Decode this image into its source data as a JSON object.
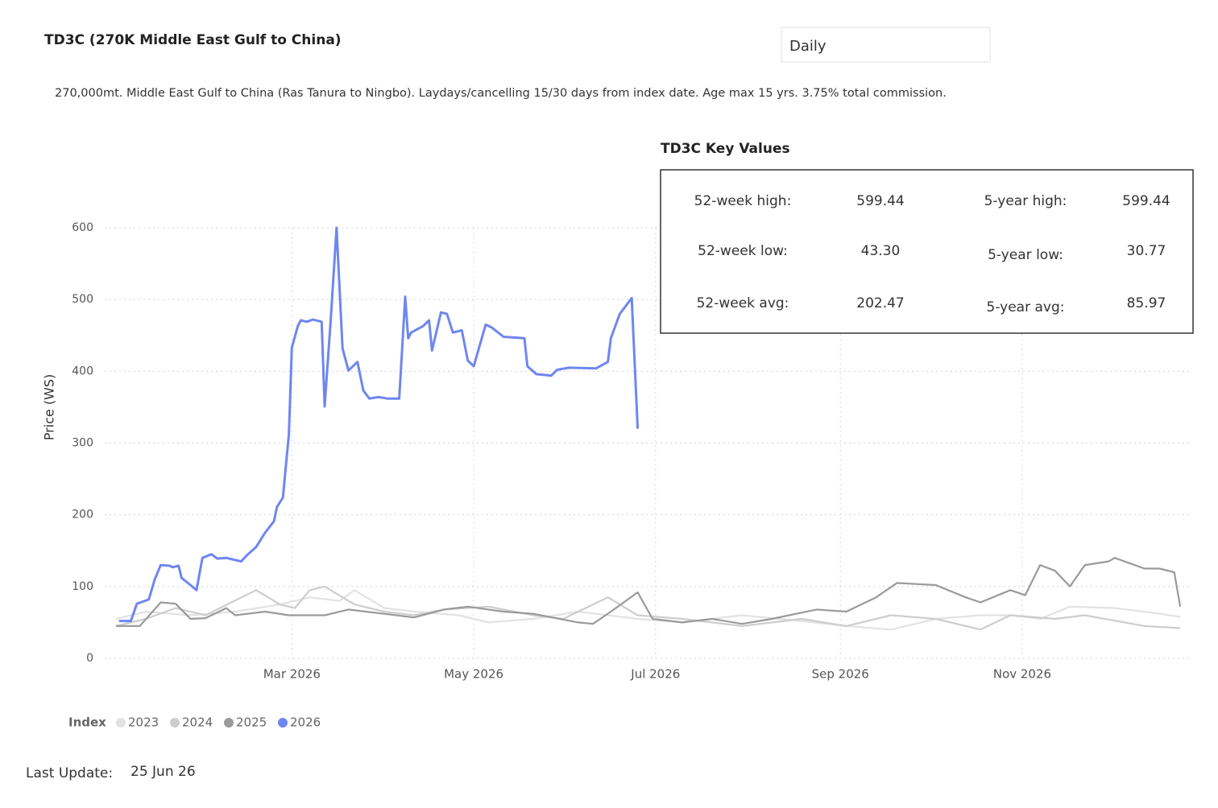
{
  "chart_data": {
    "type": "line",
    "title": "TD3C (270K Middle East Gulf to China)",
    "subtitle": "270,000mt. Middle East Gulf to China (Ras Tanura to Ningbo). Laydays/cancelling 15/30 days from index date. Age max 15 yrs. 3.75% total commission.",
    "ylabel": "Price (WS)",
    "legend_title": "Index",
    "xlim": [
      0,
      364
    ],
    "ylim": [
      0,
      600
    ],
    "xticks": [
      {
        "value": 59,
        "label": "Mar 2026"
      },
      {
        "value": 120,
        "label": "May 2026"
      },
      {
        "value": 181,
        "label": "Jul 2026"
      },
      {
        "value": 243,
        "label": "Sep 2026"
      },
      {
        "value": 304,
        "label": "Nov 2026"
      }
    ],
    "yticks": [
      0,
      100,
      200,
      300,
      400,
      500,
      600
    ],
    "grid": true,
    "series": [
      {
        "name": "2023",
        "color": "#e2e2e2",
        "x": [
          0,
          10,
          25,
          40,
          55,
          65,
          75,
          80,
          90,
          100,
          115,
          125,
          140,
          155,
          175,
          190,
          210,
          230,
          245,
          260,
          275,
          290,
          300,
          310,
          320,
          335,
          345,
          357
        ],
        "values": [
          55,
          65,
          60,
          65,
          75,
          85,
          80,
          95,
          70,
          65,
          60,
          50,
          55,
          65,
          55,
          50,
          60,
          52,
          45,
          40,
          55,
          60,
          60,
          55,
          72,
          70,
          65,
          58
        ]
      },
      {
        "name": "2024",
        "color": "#cdcdcd",
        "x": [
          0,
          10,
          20,
          30,
          47,
          55,
          60,
          65,
          70,
          80,
          90,
          100,
          110,
          125,
          140,
          150,
          165,
          175,
          190,
          210,
          230,
          245,
          260,
          275,
          290,
          300,
          315,
          325,
          345,
          357
        ],
        "values": [
          45,
          55,
          70,
          60,
          95,
          75,
          70,
          95,
          100,
          75,
          65,
          60,
          68,
          72,
          60,
          55,
          85,
          60,
          55,
          45,
          55,
          45,
          60,
          55,
          40,
          60,
          55,
          60,
          45,
          42
        ]
      },
      {
        "name": "2025",
        "color": "#9a9a9a",
        "x": [
          0,
          8,
          15,
          20,
          25,
          30,
          37,
          40,
          50,
          58,
          70,
          78,
          90,
          100,
          110,
          118,
          130,
          140,
          155,
          160,
          166,
          175,
          180,
          190,
          200,
          210,
          220,
          235,
          245,
          255,
          262,
          275,
          285,
          290,
          300,
          305,
          310,
          315,
          320,
          325,
          333,
          335,
          345,
          350,
          355,
          357
        ],
        "values": [
          45,
          45,
          78,
          76,
          55,
          56,
          70,
          60,
          65,
          60,
          60,
          68,
          62,
          57,
          68,
          72,
          65,
          62,
          50,
          48,
          65,
          92,
          55,
          50,
          55,
          48,
          55,
          68,
          65,
          85,
          105,
          102,
          85,
          78,
          95,
          88,
          130,
          122,
          100,
          130,
          135,
          140,
          125,
          125,
          120,
          72
        ]
      },
      {
        "name": "2026",
        "color": "#6f86f0",
        "x": [
          1,
          5,
          7,
          11,
          13,
          15,
          18,
          19,
          21,
          22,
          25,
          27,
          29,
          32,
          34,
          37,
          39,
          42,
          44,
          47,
          50,
          53,
          54,
          56,
          58,
          59,
          61,
          62,
          64,
          66,
          69,
          70,
          72,
          74,
          76,
          78,
          81,
          83,
          85,
          88,
          91,
          95,
          97,
          98,
          99,
          103,
          105,
          106,
          109,
          111,
          113,
          116,
          118,
          120,
          124,
          126,
          130,
          137,
          138,
          141,
          146,
          148,
          152,
          161,
          165,
          166,
          169,
          173,
          175
        ],
        "values": [
          52,
          52,
          76,
          82,
          110,
          130,
          129,
          127,
          129,
          112,
          102,
          95,
          140,
          145,
          139,
          140,
          138,
          135,
          144,
          155,
          175,
          191,
          211,
          224,
          312,
          433,
          463,
          471,
          469,
          472,
          469,
          351,
          469,
          600,
          432,
          401,
          413,
          373,
          362,
          364,
          362,
          362,
          504,
          446,
          454,
          463,
          471,
          429,
          482,
          480,
          454,
          457,
          415,
          407,
          465,
          461,
          448,
          446,
          407,
          396,
          394,
          402,
          405,
          404,
          413,
          446,
          480,
          502,
          320
        ]
      }
    ]
  },
  "selector": {
    "value": "Daily"
  },
  "key_values": {
    "title": "TD3C Key Values",
    "rows": [
      [
        "52-week high:",
        "599.44",
        "5-year high:",
        "599.44"
      ],
      [
        "52-week low:",
        "43.30",
        "5-year low:",
        "30.77"
      ],
      [
        "52-week avg:",
        "202.47",
        "5-year avg:",
        "85.97"
      ]
    ]
  },
  "last_update": {
    "label": "Last Update:",
    "value": "25 Jun 26"
  }
}
